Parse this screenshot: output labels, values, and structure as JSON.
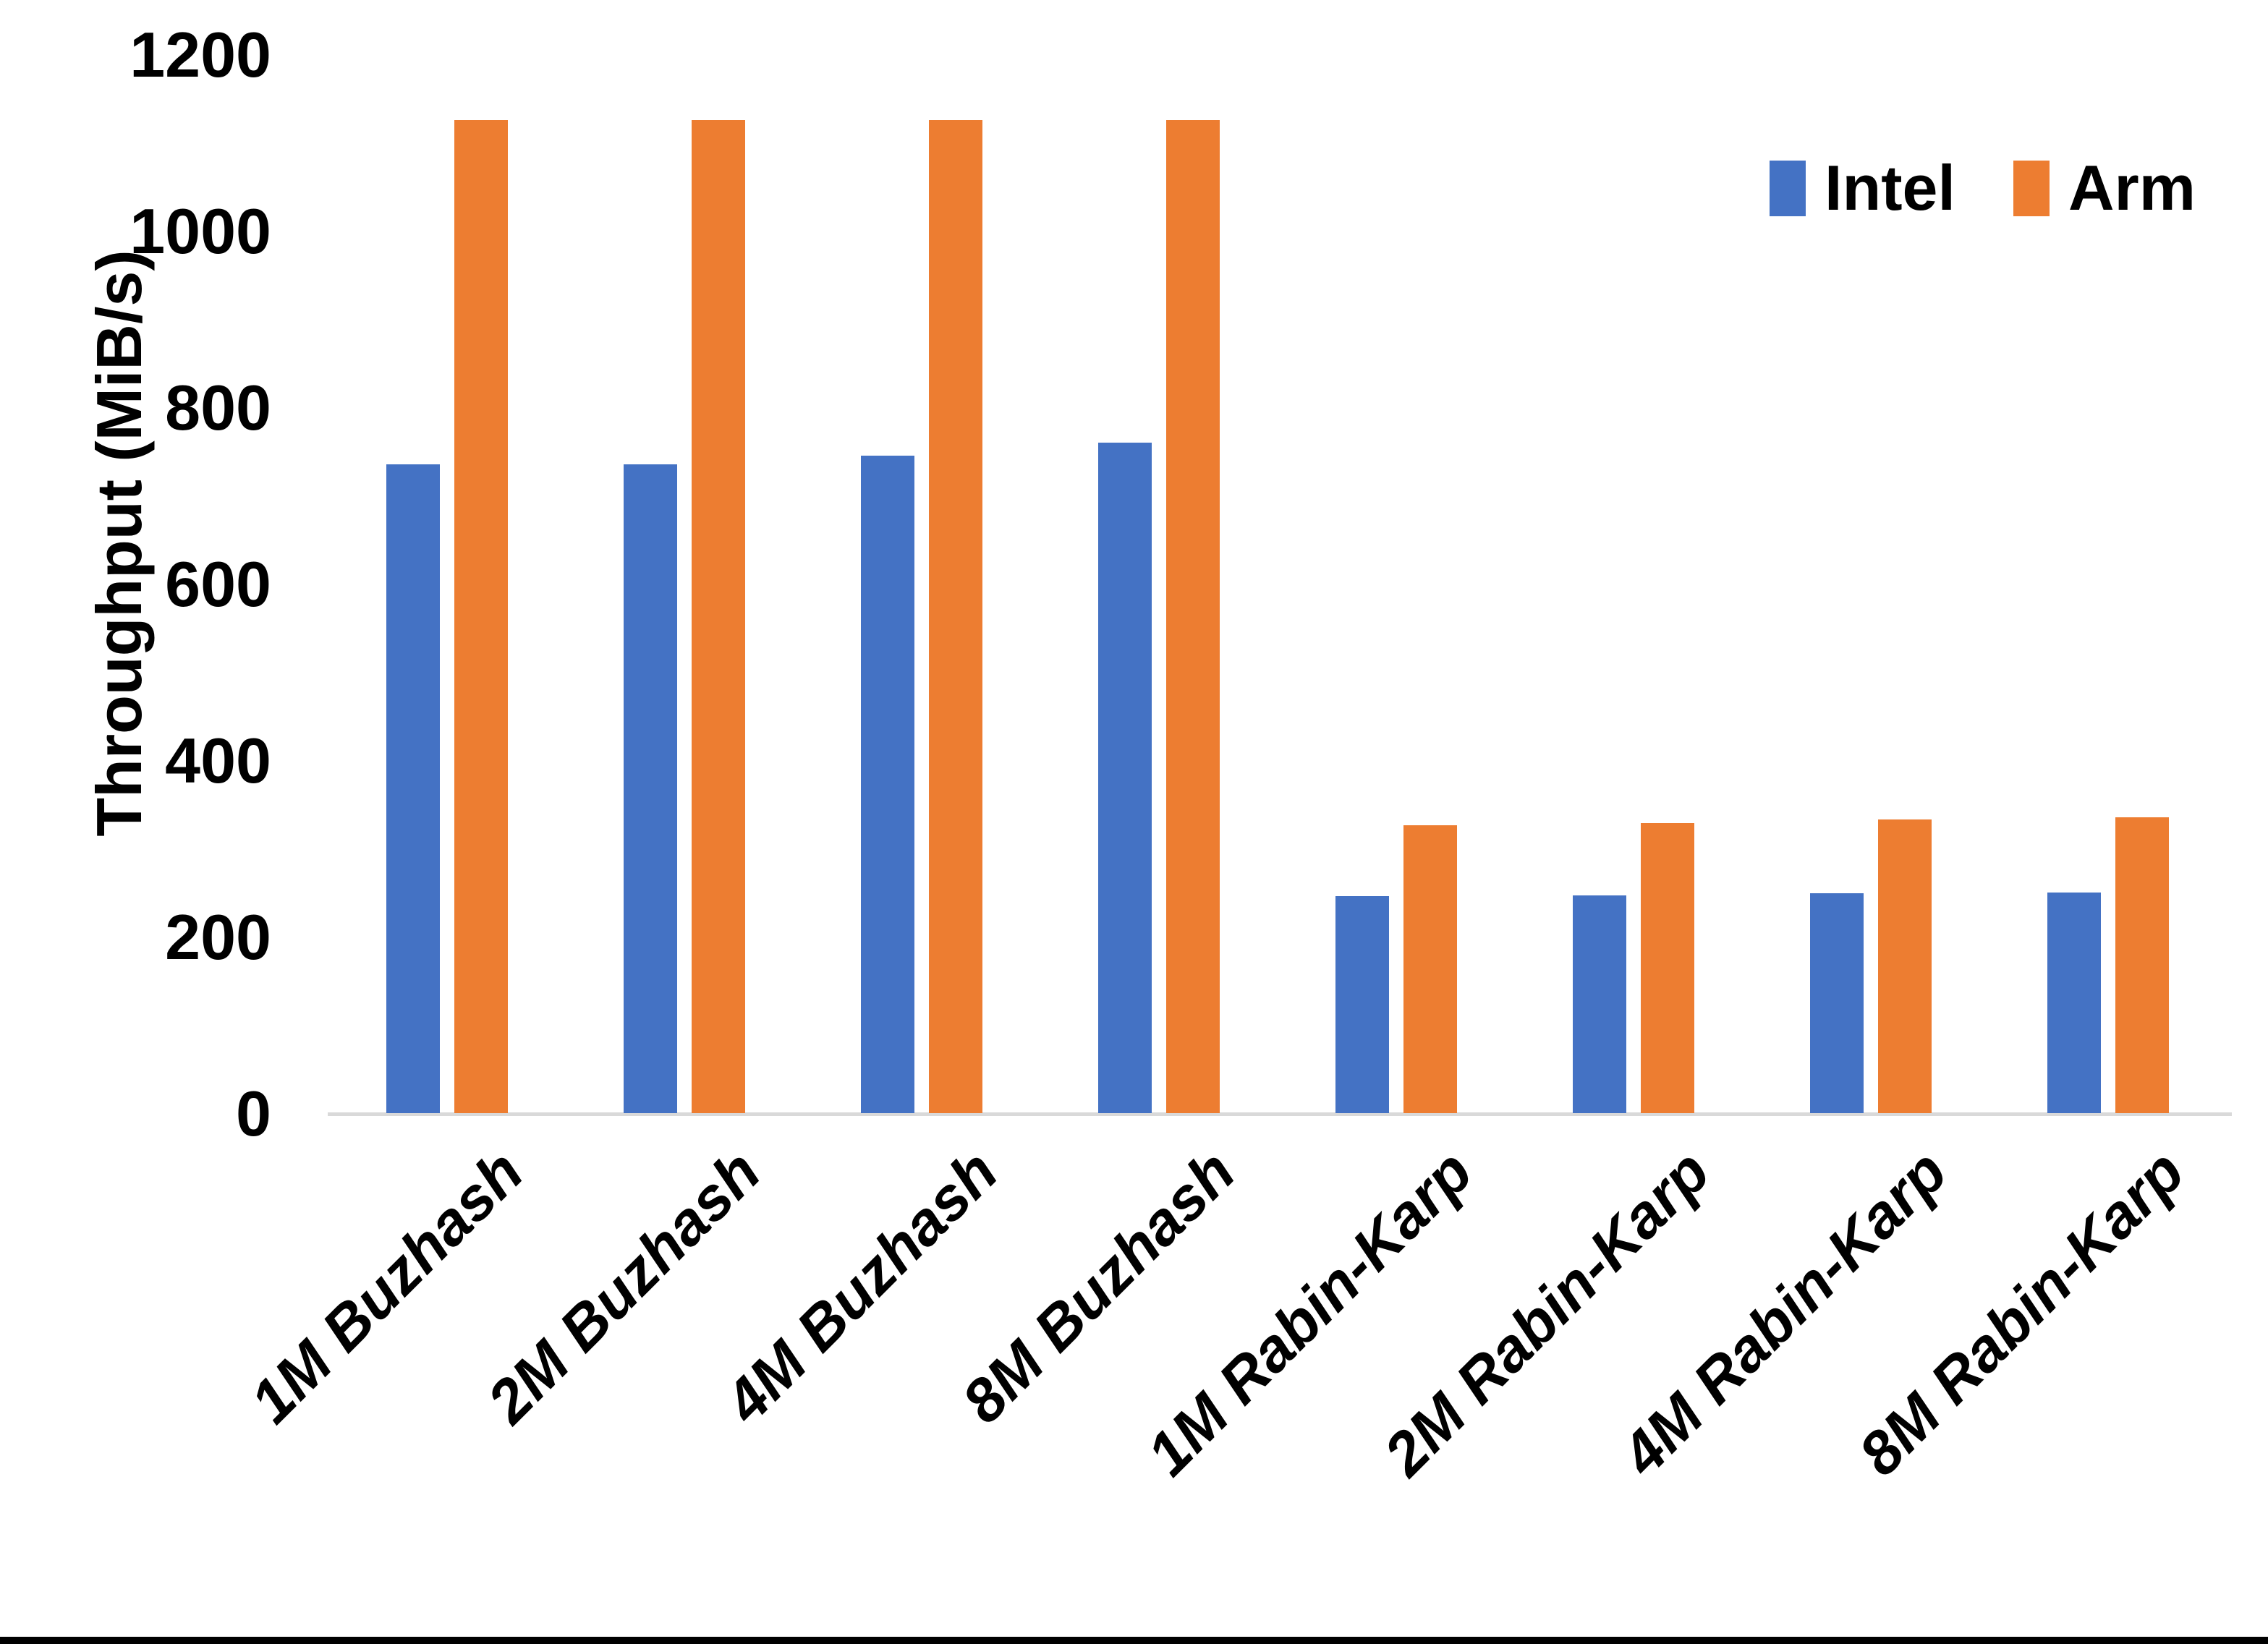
{
  "chart_data": {
    "type": "bar",
    "title": "",
    "xlabel": "",
    "ylabel": "Throughput (MiB/s)",
    "ylim": [
      0,
      1200
    ],
    "yticks": [
      0,
      200,
      400,
      600,
      800,
      1000,
      1200
    ],
    "grid": false,
    "legend_position": "top-right",
    "background_color": "#ffffff",
    "axis_line_color": "#d9d9d9",
    "text_color": "#000000",
    "categories": [
      "1M Buzhash",
      "2M Buzhash",
      "4M Buzhash",
      "8M Buzhash",
      "1M Rabin-Karp",
      "2M Rabin-Karp",
      "4M Rabin-Karp",
      "8M Rabin-Karp"
    ],
    "series": [
      {
        "name": "Intel",
        "color": "#4472C4",
        "values": [
          735,
          735,
          745,
          760,
          246,
          247,
          249,
          250
        ]
      },
      {
        "name": "Arm",
        "color": "#ED7D31",
        "values": [
          1125,
          1125,
          1125,
          1125,
          326,
          329,
          333,
          335
        ]
      }
    ]
  }
}
